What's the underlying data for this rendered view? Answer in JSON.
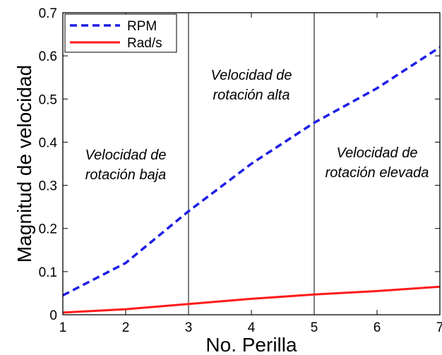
{
  "chart_data": {
    "type": "line",
    "title": "",
    "xlabel": "No. Perilla",
    "ylabel": "Magnitud de velocidad",
    "xlim": [
      1,
      7
    ],
    "ylim": [
      0,
      0.7
    ],
    "xticks": [
      1,
      2,
      3,
      4,
      5,
      6,
      7
    ],
    "yticks": [
      0,
      0.1,
      0.2,
      0.3,
      0.4,
      0.5,
      0.6,
      0.7
    ],
    "ytick_labels": [
      "0",
      "0.1",
      "0.2",
      "0.3",
      "0.4",
      "0.5",
      "0.6",
      "0.7"
    ],
    "grid": false,
    "legend_position": "top-left",
    "vlines": [
      3,
      5
    ],
    "x": [
      1,
      2,
      3,
      4,
      5,
      6,
      7
    ],
    "series": [
      {
        "name": "RPM",
        "values": [
          0.045,
          0.12,
          0.24,
          0.35,
          0.445,
          0.525,
          0.62
        ],
        "color": "#1f1fe6",
        "style": "dashed"
      },
      {
        "name": "Rad/s",
        "values": [
          0.005,
          0.013,
          0.025,
          0.037,
          0.047,
          0.055,
          0.065
        ],
        "color": "#ff1a1a",
        "style": "solid"
      }
    ],
    "annotations": [
      {
        "lines": [
          "Velocidad de",
          "rotación baja"
        ],
        "x": 2,
        "y": 0.36
      },
      {
        "lines": [
          "Velocidad de",
          "rotación alta"
        ],
        "x": 4,
        "y": 0.545
      },
      {
        "lines": [
          "Velocidad de",
          "rotación elevada"
        ],
        "x": 6,
        "y": 0.365
      }
    ]
  }
}
